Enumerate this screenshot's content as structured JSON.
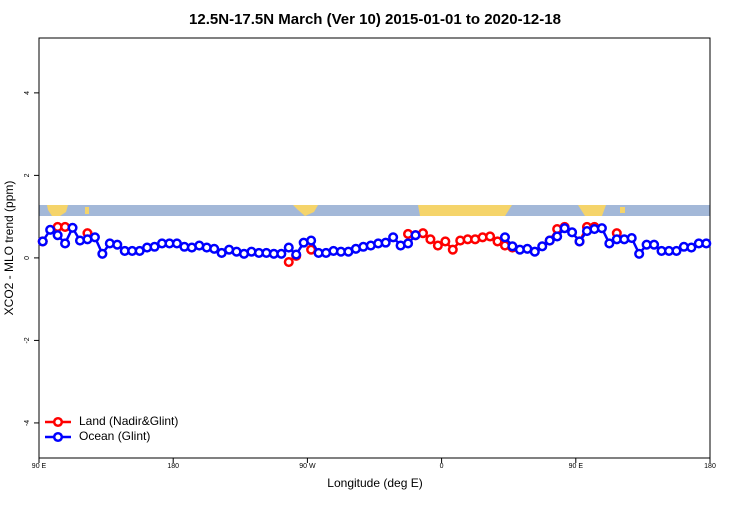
{
  "chart_data": {
    "type": "line",
    "title": "12.5N-17.5N March (Ver 10)   2015-01-01 to 2020-12-18",
    "x_label": "Longitude (deg E)",
    "y_label": "XCO2 - MLO trend (ppm)",
    "x": [
      92.5,
      97.5,
      102.5,
      107.5,
      112.5,
      117.5,
      122.5,
      127.5,
      132.5,
      137.5,
      142.5,
      147.5,
      152.5,
      157.5,
      162.5,
      167.5,
      172.5,
      177.5,
      182.5,
      187.5,
      192.5,
      197.5,
      202.5,
      207.5,
      212.5,
      217.5,
      222.5,
      227.5,
      232.5,
      237.5,
      242.5,
      247.5,
      252.5,
      257.5,
      262.5,
      267.5,
      272.5,
      277.5,
      282.5,
      287.5,
      292.5,
      297.5,
      302.5,
      307.5,
      312.5,
      317.5,
      322.5,
      327.5,
      332.5,
      337.5,
      342.5,
      347.5,
      352.5,
      357.5,
      362.5,
      367.5,
      372.5,
      377.5,
      382.5,
      387.5,
      392.5,
      397.5,
      402.5,
      407.5,
      412.5,
      417.5,
      422.5,
      427.5,
      432.5,
      437.5,
      442.5,
      447.5,
      452.5,
      457.5,
      462.5,
      467.5,
      472.5,
      477.5,
      482.5,
      487.5,
      492.5,
      497.5,
      502.5,
      507.5,
      512.5,
      517.5,
      522.5,
      527.5,
      532.5,
      537.5
    ],
    "series": [
      {
        "name": "Land (Nadir&Glint)",
        "color": "#ff0000",
        "values": [
          0.4,
          null,
          0.75,
          0.75,
          null,
          null,
          0.6,
          null,
          null,
          null,
          null,
          null,
          null,
          null,
          null,
          null,
          null,
          null,
          null,
          null,
          null,
          null,
          null,
          null,
          null,
          null,
          null,
          null,
          null,
          null,
          null,
          null,
          null,
          -0.1,
          0.05,
          null,
          0.2,
          null,
          null,
          null,
          null,
          null,
          null,
          null,
          null,
          null,
          null,
          null,
          null,
          0.58,
          0.55,
          0.6,
          0.45,
          0.3,
          0.4,
          0.2,
          0.42,
          0.45,
          0.45,
          0.5,
          0.52,
          0.4,
          0.3,
          0.25,
          null,
          null,
          null,
          null,
          0.42,
          0.7,
          0.75,
          null,
          0.4,
          0.75,
          0.75,
          null,
          null,
          0.6,
          null,
          null,
          null,
          null,
          null,
          null,
          null,
          null,
          null,
          null,
          null,
          null
        ]
      },
      {
        "name": "Ocean (Glint)",
        "color": "#0000ff",
        "values": [
          0.4,
          0.68,
          0.55,
          0.35,
          0.73,
          0.42,
          0.45,
          0.5,
          0.1,
          0.35,
          0.32,
          0.17,
          0.17,
          0.17,
          0.25,
          0.27,
          0.35,
          0.35,
          0.35,
          0.27,
          0.25,
          0.3,
          0.25,
          0.22,
          0.12,
          0.2,
          0.15,
          0.1,
          0.15,
          0.12,
          0.12,
          0.1,
          0.1,
          0.25,
          0.08,
          0.37,
          0.42,
          0.12,
          0.12,
          0.17,
          0.15,
          0.15,
          0.22,
          0.27,
          0.3,
          0.35,
          0.37,
          0.5,
          0.3,
          0.35,
          0.55,
          null,
          null,
          null,
          null,
          null,
          null,
          null,
          null,
          null,
          null,
          null,
          0.5,
          0.28,
          0.2,
          0.22,
          0.15,
          0.28,
          0.42,
          0.52,
          0.72,
          0.62,
          0.4,
          0.65,
          0.7,
          0.72,
          0.35,
          0.45,
          0.45,
          0.48,
          0.1,
          0.32,
          0.32,
          0.17,
          0.17,
          0.17,
          0.27,
          0.25,
          0.35,
          0.35
        ]
      }
    ],
    "xlim": [
      90,
      540
    ],
    "xticks": [
      {
        "value": 90,
        "label": "90 E"
      },
      180,
      {
        "value": 270,
        "label": "90 W"
      },
      {
        "value": 360,
        "label": "0"
      },
      {
        "value": 450,
        "label": "90 E"
      },
      {
        "value": 540,
        "label": "180"
      }
    ],
    "ylim": [
      -4.85,
      5.33
    ],
    "yticks": [
      -4,
      -2,
      0,
      2,
      4
    ],
    "legend": "bottom-left"
  }
}
